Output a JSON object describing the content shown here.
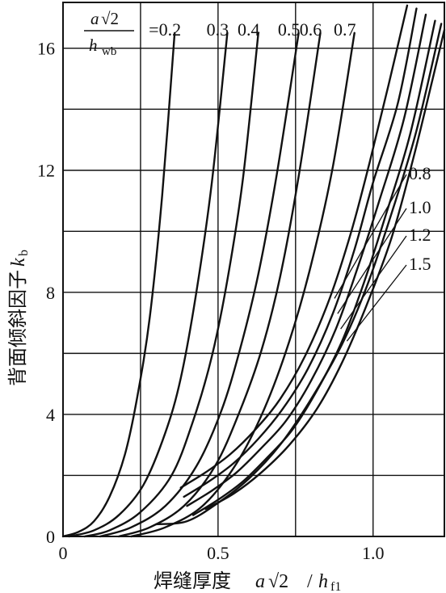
{
  "chart_data": {
    "type": "line",
    "title": "",
    "xlabel": "焊缝厚度a√2/h_f1",
    "ylabel": "背面倾斜因子k_b",
    "xlabel_parts": {
      "text": "焊缝厚度",
      "a": "a",
      "sqrt": "√2",
      "slash": "/",
      "h": "h",
      "sub": "f1"
    },
    "ylabel_parts": {
      "text": "背面倾斜因子",
      "k": "k",
      "sub": "b"
    },
    "xlim": [
      0,
      1.23
    ],
    "ylim": [
      0,
      17.5
    ],
    "x_ticks": [
      0,
      0.5,
      1.0
    ],
    "x_tick_labels": [
      "0",
      "0.5",
      "1.0"
    ],
    "y_ticks": [
      0,
      4,
      8,
      12,
      16
    ],
    "y_tick_labels": [
      "0",
      "4",
      "8",
      "12",
      "16"
    ],
    "x_grid": [
      0.25,
      0.5,
      0.75,
      1.0
    ],
    "y_grid": [
      2,
      4,
      6,
      8,
      10,
      12,
      14,
      16
    ],
    "grid": true,
    "parameter_label": {
      "numerator_a": "a",
      "numerator_sqrt": "√2",
      "denominator_h": "h",
      "denominator_sub": "wb"
    },
    "series": [
      {
        "name": "=0.2",
        "label_pos": "top",
        "x": [
          0.0,
          0.05,
          0.1,
          0.15,
          0.2,
          0.24,
          0.28,
          0.32,
          0.36
        ],
        "y": [
          0.0,
          0.15,
          0.5,
          1.3,
          2.7,
          4.6,
          7.2,
          11.2,
          16.5
        ]
      },
      {
        "name": "0.3",
        "label_pos": "top",
        "x": [
          0.02,
          0.1,
          0.18,
          0.26,
          0.33,
          0.38,
          0.43,
          0.48,
          0.53
        ],
        "y": [
          0.0,
          0.2,
          0.7,
          1.7,
          3.4,
          5.2,
          8.0,
          11.6,
          16.5
        ]
      },
      {
        "name": "0.4",
        "label_pos": "top",
        "x": [
          0.07,
          0.15,
          0.25,
          0.35,
          0.42,
          0.48,
          0.53,
          0.58,
          0.63
        ],
        "y": [
          0.0,
          0.2,
          0.8,
          2.0,
          3.8,
          5.9,
          8.4,
          11.7,
          16.5
        ]
      },
      {
        "name": "0.5",
        "label_pos": "top",
        "x": [
          0.12,
          0.22,
          0.33,
          0.43,
          0.51,
          0.57,
          0.63,
          0.69,
          0.76
        ],
        "y": [
          0.0,
          0.3,
          1.0,
          2.3,
          4.1,
          6.1,
          8.6,
          11.9,
          16.5
        ]
      },
      {
        "name": "0.6",
        "label_pos": "top",
        "x": [
          0.18,
          0.28,
          0.39,
          0.49,
          0.57,
          0.64,
          0.7,
          0.76,
          0.83
        ],
        "y": [
          0.0,
          0.3,
          1.0,
          2.3,
          4.1,
          6.1,
          8.5,
          11.8,
          16.5
        ]
      },
      {
        "name": "0.7",
        "label_pos": "top",
        "x": [
          0.22,
          0.33,
          0.45,
          0.56,
          0.65,
          0.73,
          0.8,
          0.87,
          0.94
        ],
        "y": [
          0.0,
          0.3,
          1.0,
          2.4,
          4.2,
          6.4,
          8.9,
          12.1,
          16.5
        ]
      },
      {
        "name": "0.8",
        "label_pos": "right",
        "x": [
          0.38,
          0.46,
          0.54,
          0.62,
          0.7,
          0.78,
          0.86,
          0.93,
          0.99,
          1.05,
          1.11
        ],
        "y": [
          1.6,
          2.1,
          2.7,
          3.5,
          4.5,
          5.9,
          7.8,
          10.0,
          12.3,
          14.8,
          17.4
        ]
      },
      {
        "name": "1.0",
        "label_pos": "right",
        "x": [
          0.39,
          0.47,
          0.55,
          0.63,
          0.71,
          0.79,
          0.87,
          0.94,
          1.0,
          1.08,
          1.14
        ],
        "y": [
          1.3,
          1.8,
          2.4,
          3.2,
          4.2,
          5.5,
          7.3,
          9.4,
          11.6,
          14.2,
          17.3
        ]
      },
      {
        "name": "1.2",
        "label_pos": "right",
        "x": [
          0.4,
          0.48,
          0.56,
          0.64,
          0.72,
          0.8,
          0.88,
          0.95,
          1.02,
          1.1,
          1.17
        ],
        "y": [
          1.0,
          1.5,
          2.1,
          2.9,
          3.8,
          5.1,
          6.8,
          8.8,
          11.0,
          13.7,
          17.1
        ]
      },
      {
        "name": "1.5",
        "label_pos": "right",
        "x": [
          0.42,
          0.5,
          0.58,
          0.66,
          0.74,
          0.82,
          0.9,
          0.97,
          1.04,
          1.12,
          1.2
        ],
        "y": [
          0.7,
          1.2,
          1.8,
          2.6,
          3.5,
          4.8,
          6.4,
          8.3,
          10.5,
          13.2,
          16.9
        ]
      },
      {
        "name": "",
        "label_pos": "none",
        "x": [
          0.3,
          0.4,
          0.5,
          0.6,
          0.7,
          0.8,
          0.9,
          0.98,
          1.06,
          1.14,
          1.22
        ],
        "y": [
          0.4,
          0.5,
          1.1,
          1.9,
          3.0,
          4.5,
          6.3,
          8.2,
          10.6,
          13.3,
          16.8
        ]
      },
      {
        "name": "",
        "label_pos": "none",
        "x": [
          0.46,
          0.55,
          0.64,
          0.73,
          0.82,
          0.9,
          0.98,
          1.06,
          1.13,
          1.19,
          1.23
        ],
        "y": [
          0.9,
          1.4,
          2.1,
          3.0,
          4.2,
          5.7,
          7.6,
          9.8,
          12.4,
          14.9,
          16.6
        ]
      }
    ]
  }
}
